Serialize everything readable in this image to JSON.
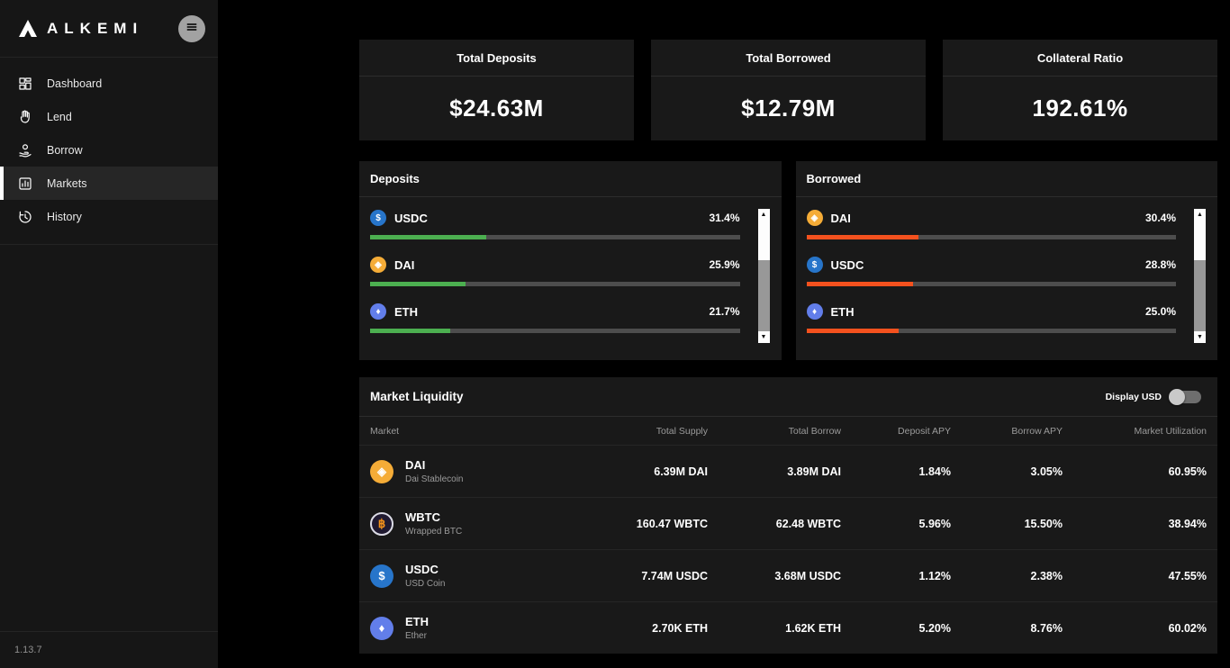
{
  "sidebar": {
    "logo": "ALKEMI",
    "items": [
      {
        "label": "Dashboard",
        "active": false
      },
      {
        "label": "Lend",
        "active": false
      },
      {
        "label": "Borrow",
        "active": false
      },
      {
        "label": "Markets",
        "active": true
      },
      {
        "label": "History",
        "active": false
      }
    ],
    "version": "1.13.7"
  },
  "stats": [
    {
      "title": "Total Deposits",
      "value": "$24.63M"
    },
    {
      "title": "Total Borrowed",
      "value": "$12.79M"
    },
    {
      "title": "Collateral Ratio",
      "value": "192.61%"
    }
  ],
  "deposits_panel": {
    "title": "Deposits",
    "items": [
      {
        "symbol": "USDC",
        "glyph": "$",
        "percent_label": "31.4%",
        "percent": 31.4
      },
      {
        "symbol": "DAI",
        "glyph": "◈",
        "percent_label": "25.9%",
        "percent": 25.9
      },
      {
        "symbol": "ETH",
        "glyph": "♦",
        "percent_label": "21.7%",
        "percent": 21.7
      }
    ]
  },
  "borrowed_panel": {
    "title": "Borrowed",
    "items": [
      {
        "symbol": "DAI",
        "glyph": "◈",
        "percent_label": "30.4%",
        "percent": 30.4
      },
      {
        "symbol": "USDC",
        "glyph": "$",
        "percent_label": "28.8%",
        "percent": 28.8
      },
      {
        "symbol": "ETH",
        "glyph": "♦",
        "percent_label": "25.0%",
        "percent": 25.0
      }
    ]
  },
  "market": {
    "title": "Market Liquidity",
    "toggle_label": "Display USD",
    "toggle_on": false,
    "columns": [
      "Market",
      "Total Supply",
      "Total Borrow",
      "Deposit APY",
      "Borrow APY",
      "Market Utilization"
    ],
    "rows": [
      {
        "symbol": "DAI",
        "glyph": "◈",
        "name": "Dai Stablecoin",
        "total_supply": "6.39M DAI",
        "total_borrow": "3.89M DAI",
        "deposit_apy": "1.84%",
        "borrow_apy": "3.05%",
        "utilization": "60.95%"
      },
      {
        "symbol": "WBTC",
        "glyph": "฿",
        "name": "Wrapped BTC",
        "total_supply": "160.47 WBTC",
        "total_borrow": "62.48 WBTC",
        "deposit_apy": "5.96%",
        "borrow_apy": "15.50%",
        "utilization": "38.94%"
      },
      {
        "symbol": "USDC",
        "glyph": "$",
        "name": "USD Coin",
        "total_supply": "7.74M USDC",
        "total_borrow": "3.68M USDC",
        "deposit_apy": "1.12%",
        "borrow_apy": "2.38%",
        "utilization": "47.55%"
      },
      {
        "symbol": "ETH",
        "glyph": "♦",
        "name": "Ether",
        "total_supply": "2.70K ETH",
        "total_borrow": "1.62K ETH",
        "deposit_apy": "5.20%",
        "borrow_apy": "8.76%",
        "utilization": "60.02%"
      }
    ]
  },
  "scrollbar": {
    "up": "▲",
    "down": "▼"
  },
  "colors": {
    "deposit_bar": "#4caf50",
    "borrow_bar": "#f4511e",
    "usdc": "#2775ca",
    "dai": "#f5ac37",
    "eth": "#627eea",
    "wbtc_bg": "#201a31",
    "wbtc_glyph": "#f7931a",
    "background": "#000000",
    "panel_bg": "#191919",
    "sidebar_bg": "#161616"
  }
}
